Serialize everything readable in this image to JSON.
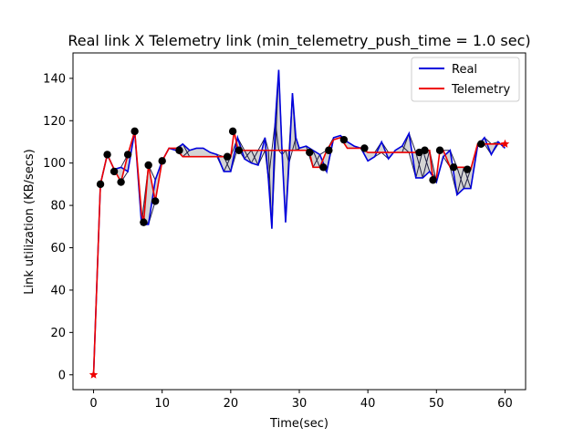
{
  "chart_data": {
    "type": "line",
    "title": "Real link X Telemetry link (min_telemetry_push_time = 1.0 sec)",
    "xlabel": "Time(sec)",
    "ylabel": "Link utilization (KB/secs)",
    "xlim": [
      -3,
      63
    ],
    "ylim": [
      -7,
      152
    ],
    "xticks": [
      0,
      10,
      20,
      30,
      40,
      50,
      60
    ],
    "yticks": [
      0,
      20,
      40,
      60,
      80,
      100,
      120,
      140
    ],
    "legend_position": "upper right",
    "fill_between_series": true,
    "series": [
      {
        "name": "Real",
        "color": "#0000dd",
        "x": [
          0,
          1,
          2,
          3,
          4,
          5,
          6,
          7,
          8,
          9,
          10,
          11,
          12,
          13,
          14,
          15,
          16,
          17,
          18,
          19,
          20,
          21,
          22,
          23,
          24,
          25,
          25.5,
          26,
          26.5,
          27,
          27.5,
          28,
          28.5,
          29,
          29.5,
          30,
          31,
          32,
          33,
          34,
          35,
          36,
          37,
          38,
          39,
          40,
          41,
          42,
          43,
          44,
          45,
          46,
          47,
          48,
          49,
          50,
          51,
          52,
          53,
          54,
          55,
          56,
          57,
          58,
          59,
          60
        ],
        "y": [
          0,
          90,
          104,
          97,
          98,
          96,
          115,
          71,
          71,
          92,
          101,
          107,
          106,
          109,
          106,
          107,
          107,
          105,
          104,
          96,
          96,
          112,
          102,
          100,
          99,
          112,
          92,
          69,
          120,
          144,
          104,
          72,
          100,
          133,
          112,
          107,
          108,
          106,
          104,
          96,
          112,
          113,
          110,
          108,
          107,
          101,
          103,
          110,
          102,
          106,
          108,
          114,
          93,
          93,
          96,
          91,
          103,
          106,
          85,
          88,
          88,
          108,
          112,
          104,
          110,
          107
        ],
        "markers": []
      },
      {
        "name": "Telemetry",
        "color": "#ee0000",
        "x": [
          0,
          1,
          2,
          3,
          4,
          5,
          6,
          7,
          7.3,
          8,
          9,
          10,
          11,
          12,
          13,
          19.5,
          20,
          20.5,
          21,
          21.5,
          22,
          31,
          31.5,
          32,
          33,
          34,
          35,
          36,
          37,
          38,
          39,
          40,
          47,
          47.5,
          48,
          49,
          49.5,
          50,
          50.5,
          51,
          52,
          53,
          54,
          55,
          56,
          57,
          60
        ],
        "y": [
          0,
          90,
          104,
          97,
          91,
          104,
          115,
          76,
          72,
          99,
          82,
          101,
          107,
          107,
          103,
          103,
          103,
          115,
          107,
          106,
          106,
          106,
          105,
          98,
          98,
          106,
          111,
          112,
          107,
          107,
          107,
          105,
          105,
          105,
          106,
          106,
          92,
          93,
          106,
          106,
          98,
          98,
          98,
          97,
          109,
          109,
          109
        ],
        "markers": [
          {
            "x": 1,
            "y": 90
          },
          {
            "x": 2,
            "y": 104
          },
          {
            "x": 3,
            "y": 96
          },
          {
            "x": 4,
            "y": 91
          },
          {
            "x": 5,
            "y": 104
          },
          {
            "x": 6,
            "y": 115
          },
          {
            "x": 7.3,
            "y": 72
          },
          {
            "x": 8,
            "y": 99
          },
          {
            "x": 9,
            "y": 82
          },
          {
            "x": 10,
            "y": 101
          },
          {
            "x": 12.5,
            "y": 106
          },
          {
            "x": 19.5,
            "y": 103
          },
          {
            "x": 20.3,
            "y": 115
          },
          {
            "x": 21.2,
            "y": 106
          },
          {
            "x": 31.5,
            "y": 105
          },
          {
            "x": 33.5,
            "y": 98
          },
          {
            "x": 34.3,
            "y": 106
          },
          {
            "x": 36.5,
            "y": 111
          },
          {
            "x": 39.5,
            "y": 107
          },
          {
            "x": 47.5,
            "y": 105
          },
          {
            "x": 48.3,
            "y": 106
          },
          {
            "x": 49.5,
            "y": 92
          },
          {
            "x": 50.5,
            "y": 106
          },
          {
            "x": 52.5,
            "y": 98
          },
          {
            "x": 54.5,
            "y": 97
          },
          {
            "x": 56.5,
            "y": 109
          }
        ],
        "star_markers": [
          {
            "x": 0,
            "y": 0
          },
          {
            "x": 60,
            "y": 109
          }
        ]
      }
    ]
  }
}
